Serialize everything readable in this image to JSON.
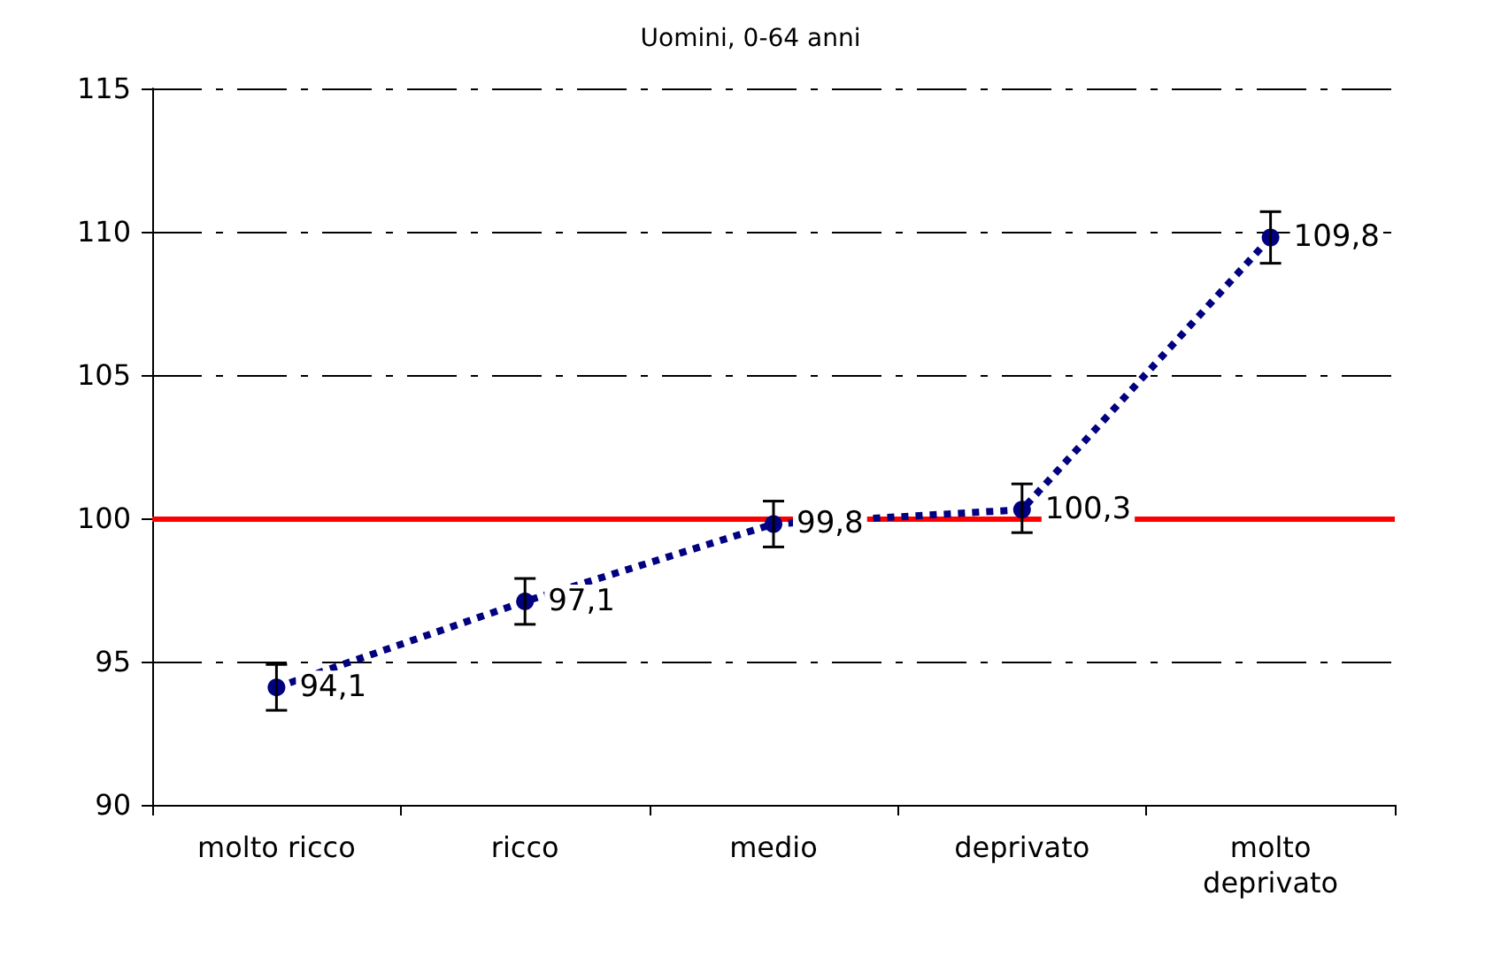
{
  "chart_data": {
    "type": "line",
    "title": "Uomini, 0-64 anni",
    "categories": [
      "molto ricco",
      "ricco",
      "medio",
      "deprivato",
      "molto\ndeprivato"
    ],
    "series": [
      {
        "color": "#000080",
        "values": [
          94.1,
          97.1,
          99.8,
          100.3,
          109.8
        ],
        "value_labels": [
          "94,1",
          "97,1",
          "99,8",
          "100,3",
          "109,8"
        ],
        "errors": [
          [
            93.3,
            94.9
          ],
          [
            96.3,
            97.9
          ],
          [
            99.0,
            100.6
          ],
          [
            99.5,
            101.2
          ],
          [
            108.9,
            110.7
          ]
        ]
      }
    ],
    "ylim": [
      90,
      115
    ],
    "yticks": [
      90,
      95,
      100,
      105,
      110,
      115
    ],
    "grid": "y",
    "marker": "circle",
    "line_style": "dotted",
    "ref_lines": [
      {
        "axis": "y",
        "value": 100,
        "color": "#ff0000",
        "line_style": "solid"
      }
    ]
  }
}
